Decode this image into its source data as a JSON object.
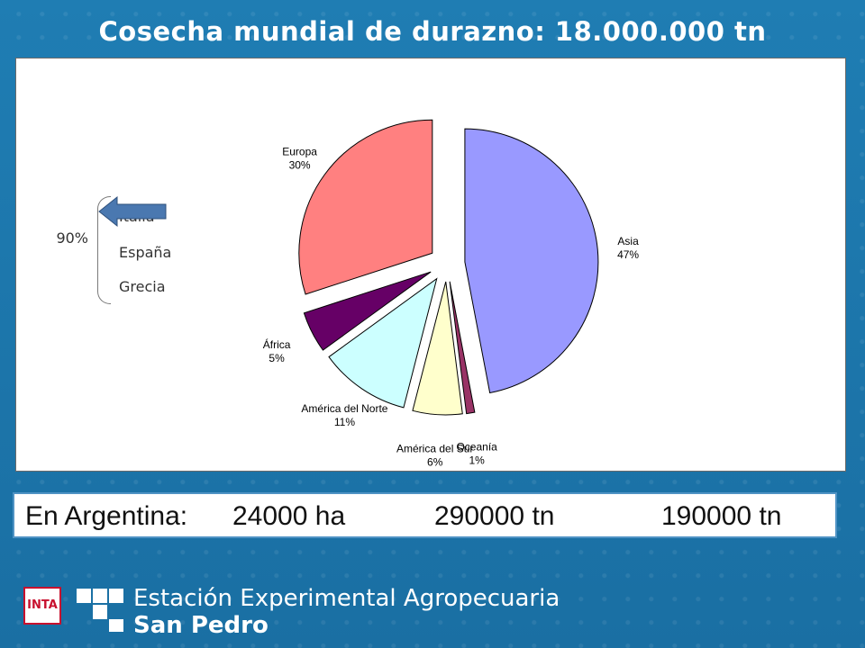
{
  "title": "Cosecha mundial de durazno: 18.000.000 tn",
  "side_note": {
    "percent": "90%",
    "countries": [
      "Italia",
      "España",
      "Grecia"
    ]
  },
  "info_bar": {
    "label": "En Argentina:",
    "area": "24000 ha",
    "production": "290000 tn",
    "third": "190000 tn"
  },
  "footer": {
    "logo_text": "INTA",
    "line1": "Estación Experimental Agropecuaria",
    "line2": "San Pedro"
  },
  "chart_data": {
    "type": "pie",
    "title": "Cosecha mundial de durazno: 18.000.000 tn",
    "slices": [
      {
        "name": "Asia",
        "label_pct": "47%",
        "value": 47,
        "color": "#9999ff"
      },
      {
        "name": "Oceanía",
        "label_pct": "1%",
        "value": 1,
        "color": "#993366"
      },
      {
        "name": "América del Sur",
        "label_pct": "6%",
        "value": 6,
        "color": "#ffffcc"
      },
      {
        "name": "América del Norte",
        "label_pct": "11%",
        "value": 11,
        "color": "#ccffff"
      },
      {
        "name": "África",
        "label_pct": "5%",
        "value": 5,
        "color": "#660066"
      },
      {
        "name": "Europa",
        "label_pct": "30%",
        "value": 30,
        "color": "#ff8080"
      }
    ],
    "exploded": true,
    "legend": "none"
  }
}
